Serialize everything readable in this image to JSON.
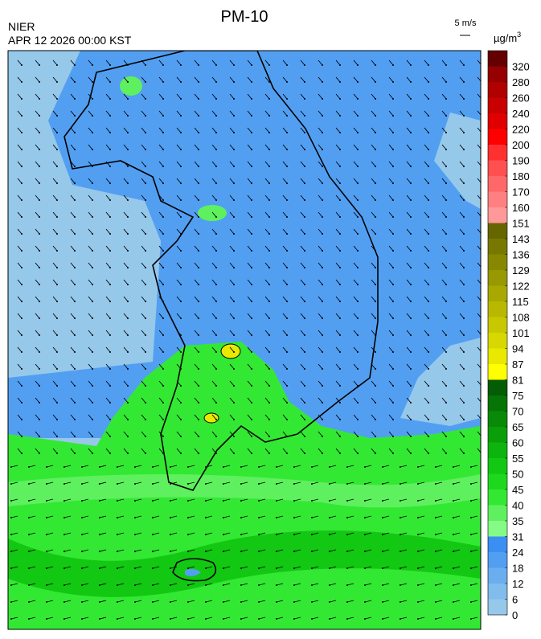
{
  "header": {
    "title": "PM-10",
    "agency": "NIER",
    "datetime": "APR 12 2026 00:00 KST",
    "vector_scale": "5 m/s",
    "unit": "µg/m",
    "unit_superscript": "3"
  },
  "colorbar": {
    "ticks": [
      0,
      6,
      12,
      18,
      24,
      31,
      35,
      40,
      45,
      50,
      55,
      60,
      65,
      70,
      75,
      81,
      87,
      94,
      101,
      108,
      115,
      122,
      129,
      136,
      143,
      151,
      160,
      170,
      180,
      190,
      200,
      220,
      240,
      260,
      280,
      320
    ],
    "colors": [
      "#96c8ea",
      "#80bcec",
      "#6aaef0",
      "#529ff2",
      "#3b8ff2",
      "#86fa86",
      "#5ef05e",
      "#33e833",
      "#1ed81e",
      "#12c812",
      "#0db40d",
      "#0a9e0a",
      "#088a08",
      "#067406",
      "#045c04",
      "#ffff00",
      "#e8e800",
      "#d8d800",
      "#c8c800",
      "#b8b800",
      "#a8a800",
      "#989800",
      "#888800",
      "#787800",
      "#666600",
      "#ff9999",
      "#ff8080",
      "#ff6868",
      "#ff5050",
      "#ff3030",
      "#ff0000",
      "#e00000",
      "#c80000",
      "#b00000",
      "#960000",
      "#640000"
    ]
  }
}
